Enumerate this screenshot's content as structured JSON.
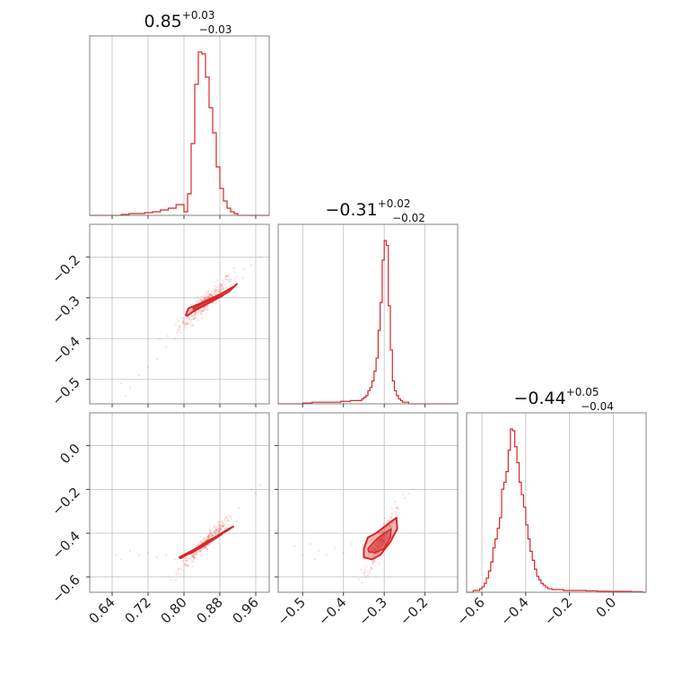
{
  "chart_data": {
    "type": "corner",
    "color": "#d62728",
    "grid": true,
    "parameters": [
      {
        "title_value": "0.85",
        "title_plus": "+0.03",
        "title_minus": "−0.03",
        "range": [
          0.59,
          0.99
        ],
        "ticks": [
          0.64,
          0.72,
          0.8,
          0.88,
          0.96
        ],
        "tick_labels": [
          "0.64",
          "0.72",
          "0.80",
          "0.88",
          "0.96"
        ],
        "hist": {
          "edges": [
            0.8,
            0.808,
            0.816,
            0.824,
            0.832,
            0.84,
            0.848,
            0.856,
            0.864,
            0.872,
            0.88,
            0.888,
            0.896,
            0.904,
            0.912,
            0.92
          ],
          "counts": [
            2,
            12,
            40,
            73,
            91,
            90,
            77,
            60,
            46,
            27,
            15,
            8,
            4,
            2,
            1
          ],
          "tail_counts": [
            0.5,
            1,
            1,
            1.5,
            2,
            3,
            4,
            6
          ],
          "tail_start": 0.66
        }
      },
      {
        "title_value": "−0.31",
        "title_plus": "+0.02",
        "title_minus": "−0.02",
        "range": [
          -0.56,
          -0.12
        ],
        "ticks": [
          -0.5,
          -0.4,
          -0.3,
          -0.2
        ],
        "tick_labels": [
          "−0.5",
          "−0.4",
          "−0.3",
          "−0.2"
        ],
        "hist": {
          "edges": [
            -0.36,
            -0.355,
            -0.35,
            -0.345,
            -0.34,
            -0.335,
            -0.33,
            -0.325,
            -0.32,
            -0.315,
            -0.31,
            -0.305,
            -0.3,
            -0.295,
            -0.29,
            -0.285,
            -0.28,
            -0.275,
            -0.27,
            -0.265,
            -0.26,
            -0.255,
            -0.25,
            -0.245,
            -0.24
          ],
          "counts": [
            2,
            3,
            4,
            5,
            8,
            10,
            14,
            20,
            28,
            45,
            62,
            88,
            100,
            97,
            60,
            33,
            14,
            8,
            5,
            3,
            2,
            1,
            1,
            1
          ],
          "tail_counts": [
            0.5,
            1,
            1,
            1,
            1.5,
            2
          ],
          "tail_start": -0.5
        }
      },
      {
        "title_value": "−0.44",
        "title_plus": "+0.05",
        "title_minus": "−0.04",
        "range": [
          -0.67,
          0.15
        ],
        "ticks": [
          -0.6,
          -0.4,
          -0.2,
          0.0
        ],
        "tick_labels": [
          "−0.6",
          "−0.4",
          "−0.2",
          "0.0"
        ],
        "hist": {
          "edges": [
            -0.64,
            -0.63,
            -0.62,
            -0.61,
            -0.6,
            -0.59,
            -0.58,
            -0.57,
            -0.56,
            -0.55,
            -0.54,
            -0.53,
            -0.52,
            -0.51,
            -0.5,
            -0.49,
            -0.48,
            -0.47,
            -0.46,
            -0.45,
            -0.44,
            -0.43,
            -0.42,
            -0.41,
            -0.4,
            -0.39,
            -0.38,
            -0.37,
            -0.36,
            -0.35,
            -0.34,
            -0.33,
            -0.32,
            -0.31,
            -0.3,
            -0.29,
            -0.28
          ],
          "counts": [
            1,
            1,
            1,
            2,
            3,
            5,
            8,
            12,
            17,
            25,
            30,
            36,
            42,
            58,
            62,
            68,
            80,
            92,
            91,
            82,
            73,
            62,
            55,
            48,
            38,
            30,
            23,
            18,
            13,
            9,
            7,
            5,
            4,
            3,
            2,
            2
          ],
          "tail_counts": [
            1.5,
            1,
            1,
            0.8,
            0.6,
            0.5,
            0.5,
            0.3
          ],
          "tail_start": -0.28
        }
      }
    ],
    "pairs": [
      {
        "x_param": 0,
        "y_param": 1,
        "slope": 1.0,
        "x_center": 0.85,
        "y_center": -0.31,
        "x_sd": 0.03,
        "perp_sd": 0.012,
        "outliers": [
          [
            0.66,
            -0.51
          ],
          [
            0.67,
            -0.54
          ],
          [
            0.7,
            -0.49
          ],
          [
            0.72,
            -0.47
          ],
          [
            0.74,
            -0.45
          ],
          [
            0.76,
            -0.42
          ],
          [
            0.78,
            -0.4
          ],
          [
            0.79,
            -0.37
          ],
          [
            0.8,
            -0.36
          ],
          [
            0.95,
            -0.22
          ],
          [
            0.97,
            -0.2
          ],
          [
            0.68,
            -0.52
          ]
        ],
        "contour_outer": [
          [
            0.804,
            -0.343
          ],
          [
            0.81,
            -0.326
          ],
          [
            0.84,
            -0.312
          ],
          [
            0.88,
            -0.292
          ],
          [
            0.915,
            -0.27
          ],
          [
            0.918,
            -0.266
          ],
          [
            0.9,
            -0.285
          ],
          [
            0.86,
            -0.31
          ],
          [
            0.82,
            -0.334
          ],
          [
            0.808,
            -0.344
          ]
        ],
        "contour_inner": [
          [
            0.82,
            -0.326
          ],
          [
            0.845,
            -0.312
          ],
          [
            0.88,
            -0.296
          ],
          [
            0.888,
            -0.294
          ],
          [
            0.87,
            -0.305
          ],
          [
            0.838,
            -0.322
          ],
          [
            0.823,
            -0.33
          ]
        ]
      },
      {
        "x_param": 0,
        "y_param": 2,
        "slope": 2.0,
        "x_center": 0.85,
        "y_center": -0.44,
        "x_sd": 0.03,
        "perp_sd": 0.015,
        "outliers": [
          [
            0.65,
            -0.5
          ],
          [
            0.66,
            -0.52
          ],
          [
            0.68,
            -0.48
          ],
          [
            0.7,
            -0.5
          ],
          [
            0.72,
            -0.49
          ],
          [
            0.74,
            -0.51
          ],
          [
            0.76,
            -0.5
          ],
          [
            0.78,
            -0.52
          ],
          [
            0.95,
            -0.2
          ],
          [
            0.96,
            -0.22
          ],
          [
            0.97,
            -0.18
          ]
        ],
        "contour_outer": [
          [
            0.79,
            -0.51
          ],
          [
            0.82,
            -0.478
          ],
          [
            0.86,
            -0.43
          ],
          [
            0.9,
            -0.38
          ],
          [
            0.91,
            -0.37
          ],
          [
            0.895,
            -0.39
          ],
          [
            0.85,
            -0.44
          ],
          [
            0.805,
            -0.5
          ],
          [
            0.792,
            -0.515
          ]
        ],
        "contour_inner": [
          [
            0.81,
            -0.49
          ],
          [
            0.845,
            -0.452
          ],
          [
            0.878,
            -0.41
          ],
          [
            0.885,
            -0.405
          ],
          [
            0.87,
            -0.425
          ],
          [
            0.835,
            -0.47
          ],
          [
            0.813,
            -0.495
          ]
        ]
      },
      {
        "x_param": 1,
        "y_param": 2,
        "slope": 3.4,
        "x_center": -0.31,
        "y_center": -0.44,
        "x_sd": 0.018,
        "perp_sd": 0.03,
        "outliers": [
          [
            -0.52,
            -0.46
          ],
          [
            -0.5,
            -0.5
          ],
          [
            -0.48,
            -0.45
          ],
          [
            -0.46,
            -0.48
          ],
          [
            -0.44,
            -0.5
          ],
          [
            -0.42,
            -0.47
          ],
          [
            -0.4,
            -0.49
          ],
          [
            -0.38,
            -0.45
          ],
          [
            -0.24,
            -0.22
          ],
          [
            -0.23,
            -0.2
          ],
          [
            -0.25,
            -0.24
          ],
          [
            -0.47,
            -0.52
          ]
        ],
        "contour_outer": [
          [
            -0.35,
            -0.47
          ],
          [
            -0.34,
            -0.42
          ],
          [
            -0.32,
            -0.4
          ],
          [
            -0.285,
            -0.35
          ],
          [
            -0.27,
            -0.33
          ],
          [
            -0.268,
            -0.38
          ],
          [
            -0.285,
            -0.44
          ],
          [
            -0.31,
            -0.5
          ],
          [
            -0.33,
            -0.52
          ],
          [
            -0.35,
            -0.51
          ]
        ],
        "contour_inner": [
          [
            -0.34,
            -0.47
          ],
          [
            -0.32,
            -0.43
          ],
          [
            -0.3,
            -0.4
          ],
          [
            -0.283,
            -0.38
          ],
          [
            -0.285,
            -0.42
          ],
          [
            -0.3,
            -0.47
          ],
          [
            -0.322,
            -0.49
          ],
          [
            -0.338,
            -0.485
          ]
        ]
      }
    ]
  }
}
